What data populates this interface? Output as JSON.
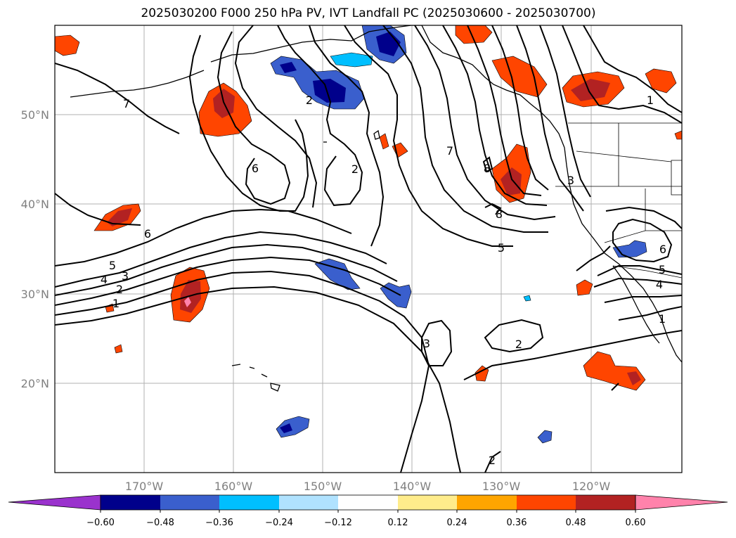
{
  "title": "2025030200 F000 250 hPa PV, IVT Landfall PC (2025030600 - 2025030700)",
  "longitude_ticks": [
    "170°W",
    "160°W",
    "150°W",
    "140°W",
    "130°W",
    "120°W"
  ],
  "latitude_ticks": [
    "50°N",
    "40°N",
    "30°N",
    "20°N"
  ],
  "colorbar": {
    "ticks": [
      "−0.60",
      "−0.48",
      "−0.36",
      "−0.24",
      "−0.12",
      "0.12",
      "0.24",
      "0.36",
      "0.48",
      "0.60"
    ],
    "colors": [
      "#9a32cd",
      "#00008b",
      "#3a5fcd",
      "#00bfff",
      "#b0e2ff",
      "#ffffff",
      "#ffec8b",
      "#ffa500",
      "#ff4500",
      "#b22222",
      "#ff82ab"
    ]
  },
  "contour_labels": [
    {
      "text": "7"
    },
    {
      "text": "2"
    },
    {
      "text": "6"
    },
    {
      "text": "2"
    },
    {
      "text": "6"
    },
    {
      "text": "5"
    },
    {
      "text": "4"
    },
    {
      "text": "3"
    },
    {
      "text": "2"
    },
    {
      "text": "1"
    },
    {
      "text": "7"
    },
    {
      "text": "8"
    },
    {
      "text": "8"
    },
    {
      "text": "5"
    },
    {
      "text": "3"
    },
    {
      "text": "1"
    },
    {
      "text": "6"
    },
    {
      "text": "5"
    },
    {
      "text": "4"
    },
    {
      "text": "1"
    },
    {
      "text": "3"
    },
    {
      "text": "2"
    },
    {
      "text": "2"
    }
  ]
}
